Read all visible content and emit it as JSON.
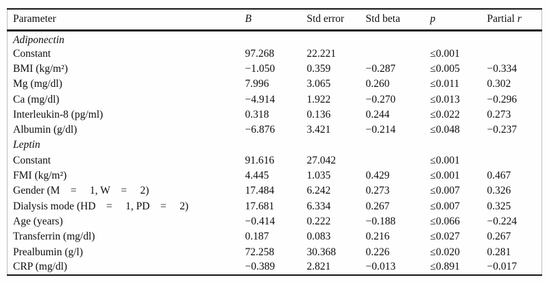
{
  "table": {
    "columns": [
      {
        "key": "parameter",
        "label": "Parameter",
        "italic": false
      },
      {
        "key": "b",
        "label": "B",
        "italic": true
      },
      {
        "key": "std_error",
        "label": "Std error",
        "italic": false
      },
      {
        "key": "std_beta",
        "label": "Std beta",
        "italic": false
      },
      {
        "key": "p",
        "label": "p",
        "italic": true
      },
      {
        "key": "partial_r",
        "label": "Partial ",
        "italic": false,
        "suffix": "r",
        "suffix_italic": true
      }
    ],
    "sections": [
      {
        "name": "Adiponectin",
        "rows": [
          {
            "parameter": "Constant",
            "b": "97.268",
            "std_error": "22.221",
            "std_beta": "",
            "p": "≤0.001",
            "partial_r": ""
          },
          {
            "parameter": "BMI (kg/m²)",
            "b": "−1.050",
            "std_error": "0.359",
            "std_beta": "−0.287",
            "p": "≤0.005",
            "partial_r": "−0.334"
          },
          {
            "parameter": "Mg (mg/dl)",
            "b": "7.996",
            "std_error": "3.065",
            "std_beta": "0.260",
            "p": "≤0.011",
            "partial_r": "0.302"
          },
          {
            "parameter": "Ca (mg/dl)",
            "b": "−4.914",
            "std_error": "1.922",
            "std_beta": "−0.270",
            "p": "≤0.013",
            "partial_r": "−0.296"
          },
          {
            "parameter": "Interleukin-8 (pg/ml)",
            "b": "0.318",
            "std_error": "0.136",
            "std_beta": "0.244",
            "p": "≤0.022",
            "partial_r": "0.273"
          },
          {
            "parameter": "Albumin (g/dl)",
            "b": "−6.876",
            "std_error": "3.421",
            "std_beta": "−0.214",
            "p": "≤0.048",
            "partial_r": "−0.237"
          }
        ]
      },
      {
        "name": "Leptin",
        "rows": [
          {
            "parameter": "Constant",
            "b": "91.616",
            "std_error": "27.042",
            "std_beta": "",
            "p": "≤0.001",
            "partial_r": ""
          },
          {
            "parameter": "FMI (kg/m²)",
            "b": "4.445",
            "std_error": "1.035",
            "std_beta": "0.429",
            "p": "≤0.001",
            "partial_r": "0.467"
          },
          {
            "parameter": "Gender (M =  1, W =  2)",
            "b": "17.484",
            "std_error": "6.242",
            "std_beta": "0.273",
            "p": "≤0.007",
            "partial_r": "0.326"
          },
          {
            "parameter": "Dialysis mode (HD =  1, PD =  2)",
            "b": "17.681",
            "std_error": "6.334",
            "std_beta": "0.267",
            "p": "≤0.007",
            "partial_r": "0.325"
          },
          {
            "parameter": "Age (years)",
            "b": "−0.414",
            "std_error": "0.222",
            "std_beta": "−0.188",
            "p": "≤0.066",
            "partial_r": "−0.224"
          },
          {
            "parameter": "Transferrin (mg/dl)",
            "b": "0.187",
            "std_error": "0.083",
            "std_beta": "0.216",
            "p": "≤0.027",
            "partial_r": "0.267"
          },
          {
            "parameter": "Prealbumin (g/l)",
            "b": "72.258",
            "std_error": "30.368",
            "std_beta": "0.226",
            "p": "≤0.020",
            "partial_r": "0.281"
          },
          {
            "parameter": "CRP (mg/dl)",
            "b": "−0.389",
            "std_error": "2.821",
            "std_beta": "−0.013",
            "p": "≤0.891",
            "partial_r": "−0.017"
          }
        ]
      }
    ]
  }
}
